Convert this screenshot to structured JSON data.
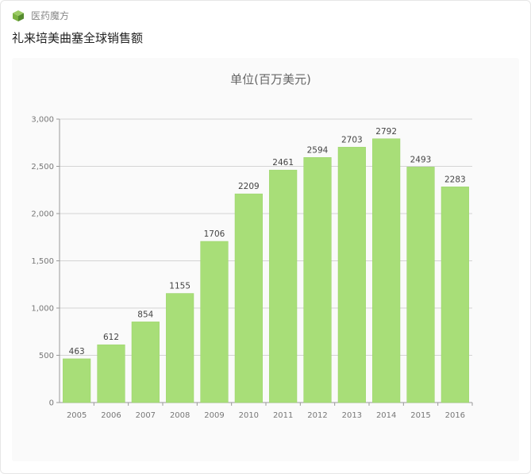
{
  "header": {
    "source_name": "医药魔方",
    "logo_icon": "cube-icon"
  },
  "post": {
    "title": "礼来培美曲塞全球销售额"
  },
  "colors": {
    "bar": "#a8de78",
    "bar_stroke": "#98d266",
    "grid": "#d4d4d4",
    "axis": "#999999"
  },
  "chart_data": {
    "type": "bar",
    "title": "单位(百万美元)",
    "xlabel": "",
    "ylabel": "",
    "categories": [
      "2005",
      "2006",
      "2007",
      "2008",
      "2009",
      "2010",
      "2011",
      "2012",
      "2013",
      "2014",
      "2015",
      "2016"
    ],
    "values": [
      463,
      612,
      854,
      1155,
      1706,
      2209,
      2461,
      2594,
      2703,
      2792,
      2493,
      2283
    ],
    "ylim": [
      0,
      3000
    ],
    "yticks": [
      0,
      500,
      1000,
      1500,
      2000,
      2500,
      3000
    ],
    "ytick_labels": [
      "0",
      "500",
      "1,000",
      "1,500",
      "2,000",
      "2,500",
      "3,000"
    ],
    "grid": true,
    "legend": "none",
    "data_labels": true
  }
}
